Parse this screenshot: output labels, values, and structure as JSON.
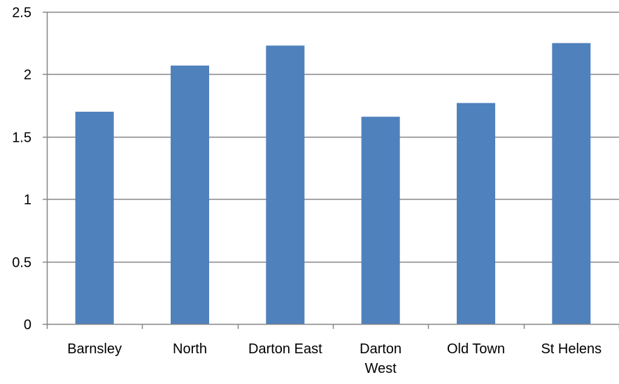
{
  "chart_data": {
    "type": "bar",
    "categories": [
      "Barnsley",
      "North",
      "Darton East",
      "Darton West",
      "Old Town",
      "St Helens"
    ],
    "category_lines": [
      [
        "Barnsley"
      ],
      [
        "North"
      ],
      [
        "Darton East"
      ],
      [
        "Darton",
        "West"
      ],
      [
        "Old Town"
      ],
      [
        "St Helens"
      ]
    ],
    "values": [
      1.7,
      2.07,
      2.23,
      1.66,
      1.77,
      2.25
    ],
    "ylim": [
      0,
      2.5
    ],
    "yticks": [
      0,
      0.5,
      1,
      1.5,
      2,
      2.5
    ],
    "ytick_labels": [
      "0",
      "0.5",
      "1",
      "1.5",
      "2",
      "2.5"
    ],
    "grid": true,
    "legend": "none",
    "bar_color": "#4F81BD",
    "grid_color": "#868686",
    "axis_color": "#868686"
  }
}
